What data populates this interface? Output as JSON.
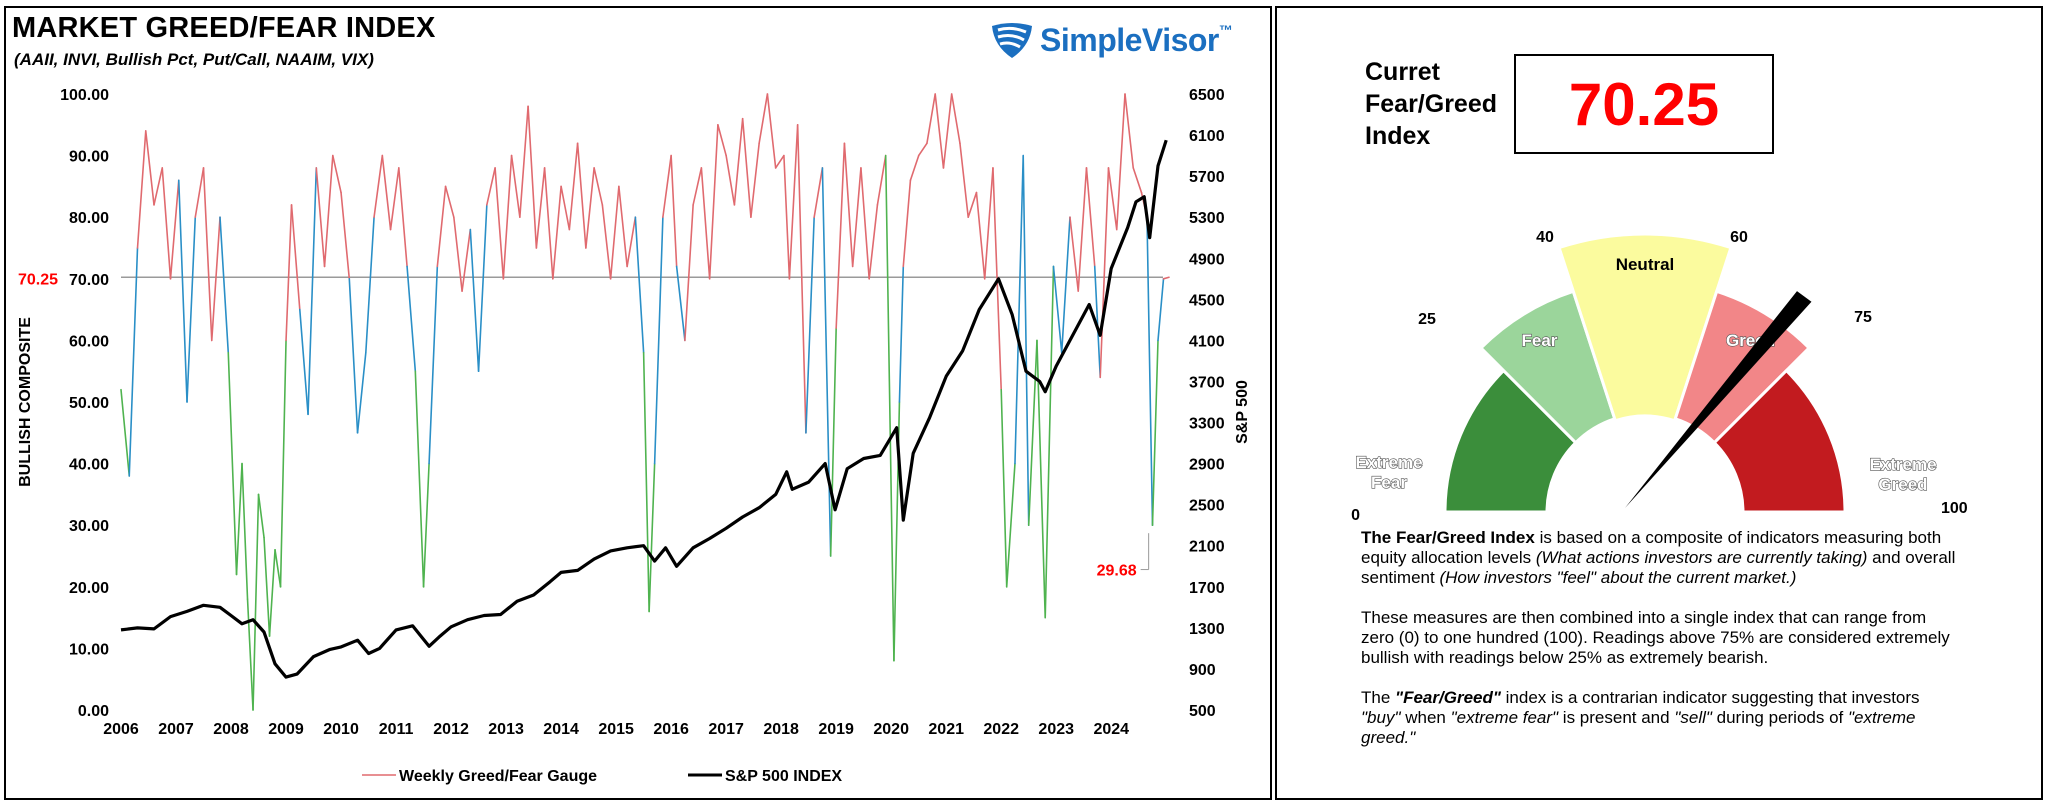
{
  "header": {
    "title": "MARKET GREED/FEAR INDEX",
    "subtitle": "(AAII, INVI, Bullish Pct, Put/Call, NAAIM, VIX)",
    "logo_text": "SimpleVisor",
    "logo_tm": "™"
  },
  "colors": {
    "greed_line": "#e06a6f",
    "neutral_line": "#2a8fc7",
    "fear_line": "#4fb34f",
    "sp500_line": "#000000",
    "current_value_red": "#ff0000"
  },
  "chart_data": {
    "type": "line",
    "x_ticks": [
      "2006",
      "2007",
      "2008",
      "2009",
      "2010",
      "2011",
      "2012",
      "2013",
      "2014",
      "2015",
      "2016",
      "2017",
      "2018",
      "2019",
      "2020",
      "2021",
      "2022",
      "2023",
      "2024"
    ],
    "xlim": [
      2006.0,
      2025.05
    ],
    "y_left": {
      "label": "BULLISH COMPOSITE",
      "ticks": [
        "0.00",
        "10.00",
        "20.00",
        "30.00",
        "40.00",
        "50.00",
        "60.00",
        "70.00",
        "80.00",
        "90.00",
        "100.00"
      ],
      "range": [
        0,
        100
      ]
    },
    "y_right": {
      "label": "S&P 500",
      "ticks": [
        "500",
        "900",
        "1300",
        "1700",
        "2100",
        "2500",
        "2900",
        "3300",
        "3700",
        "4100",
        "4500",
        "4900",
        "5300",
        "5700",
        "6100",
        "6500"
      ],
      "range": [
        500,
        6500
      ]
    },
    "reference_line": {
      "value": 70.25,
      "label": "70.25"
    },
    "min_annotation": {
      "value": 29.68,
      "label": "29.68"
    },
    "legend": [
      "Weekly Greed/Fear Gauge",
      "S&P 500 INDEX"
    ],
    "legend_position": "bottom",
    "series": [
      {
        "name": "Weekly Greed/Fear Gauge",
        "x": [
          2006.0,
          2006.15,
          2006.3,
          2006.45,
          2006.6,
          2006.75,
          2006.9,
          2007.05,
          2007.2,
          2007.35,
          2007.5,
          2007.65,
          2007.8,
          2007.95,
          2008.1,
          2008.2,
          2008.3,
          2008.4,
          2008.5,
          2008.6,
          2008.7,
          2008.8,
          2008.9,
          2009.0,
          2009.1,
          2009.25,
          2009.4,
          2009.55,
          2009.7,
          2009.85,
          2010.0,
          2010.15,
          2010.3,
          2010.45,
          2010.6,
          2010.75,
          2010.9,
          2011.05,
          2011.2,
          2011.35,
          2011.5,
          2011.6,
          2011.75,
          2011.9,
          2012.05,
          2012.2,
          2012.35,
          2012.5,
          2012.65,
          2012.8,
          2012.95,
          2013.1,
          2013.25,
          2013.4,
          2013.55,
          2013.7,
          2013.85,
          2014.0,
          2014.15,
          2014.3,
          2014.45,
          2014.6,
          2014.75,
          2014.9,
          2015.05,
          2015.2,
          2015.35,
          2015.5,
          2015.6,
          2015.7,
          2015.85,
          2016.0,
          2016.1,
          2016.25,
          2016.4,
          2016.55,
          2016.7,
          2016.85,
          2017.0,
          2017.15,
          2017.3,
          2017.45,
          2017.6,
          2017.75,
          2017.9,
          2018.05,
          2018.15,
          2018.3,
          2018.45,
          2018.6,
          2018.75,
          2018.9,
          2019.0,
          2019.15,
          2019.3,
          2019.45,
          2019.6,
          2019.75,
          2019.9,
          2020.05,
          2020.15,
          2020.22,
          2020.35,
          2020.5,
          2020.65,
          2020.8,
          2020.95,
          2021.1,
          2021.25,
          2021.4,
          2021.55,
          2021.7,
          2021.85,
          2022.0,
          2022.1,
          2022.25,
          2022.4,
          2022.5,
          2022.65,
          2022.8,
          2022.95,
          2023.1,
          2023.25,
          2023.4,
          2023.55,
          2023.7,
          2023.8,
          2023.95,
          2024.1,
          2024.25,
          2024.4,
          2024.55,
          2024.65,
          2024.75,
          2024.85,
          2024.95,
          2025.05
        ],
        "values": [
          52,
          38,
          75,
          94,
          82,
          88,
          70,
          86,
          50,
          80,
          88,
          60,
          80,
          58,
          22,
          40,
          18,
          0,
          35,
          28,
          12,
          26,
          20,
          60,
          82,
          65,
          48,
          88,
          72,
          90,
          84,
          70,
          45,
          58,
          80,
          90,
          78,
          88,
          72,
          55,
          20,
          40,
          72,
          85,
          80,
          68,
          78,
          55,
          82,
          88,
          70,
          90,
          80,
          98,
          75,
          88,
          70,
          85,
          78,
          92,
          75,
          88,
          82,
          70,
          85,
          72,
          80,
          58,
          16,
          40,
          80,
          90,
          72,
          60,
          82,
          88,
          70,
          95,
          90,
          82,
          96,
          80,
          92,
          100,
          88,
          90,
          70,
          95,
          45,
          80,
          88,
          25,
          62,
          92,
          72,
          88,
          70,
          82,
          90,
          8,
          50,
          72,
          86,
          90,
          92,
          100,
          88,
          100,
          92,
          80,
          84,
          70,
          88,
          52,
          20,
          40,
          90,
          30,
          60,
          15,
          72,
          58,
          80,
          68,
          88,
          72,
          54,
          88,
          78,
          100,
          88,
          84,
          80,
          30,
          60,
          70,
          70.25
        ]
      },
      {
        "name": "S&P 500 INDEX",
        "x": [
          2006.0,
          2006.3,
          2006.6,
          2006.9,
          2007.2,
          2007.5,
          2007.8,
          2008.0,
          2008.2,
          2008.4,
          2008.6,
          2008.8,
          2009.0,
          2009.2,
          2009.5,
          2009.8,
          2010.0,
          2010.3,
          2010.5,
          2010.7,
          2011.0,
          2011.3,
          2011.6,
          2011.8,
          2012.0,
          2012.3,
          2012.6,
          2012.9,
          2013.2,
          2013.5,
          2013.8,
          2014.0,
          2014.3,
          2014.6,
          2014.9,
          2015.2,
          2015.5,
          2015.7,
          2015.9,
          2016.1,
          2016.4,
          2016.7,
          2017.0,
          2017.3,
          2017.6,
          2017.9,
          2018.1,
          2018.2,
          2018.5,
          2018.8,
          2018.98,
          2019.2,
          2019.5,
          2019.8,
          2020.1,
          2020.22,
          2020.4,
          2020.7,
          2021.0,
          2021.3,
          2021.6,
          2021.95,
          2022.2,
          2022.45,
          2022.7,
          2022.8,
          2023.0,
          2023.3,
          2023.6,
          2023.8,
          2024.0,
          2024.3,
          2024.45,
          2024.6,
          2024.7,
          2024.85,
          2025.0
        ],
        "values": [
          1280,
          1300,
          1290,
          1410,
          1460,
          1520,
          1500,
          1420,
          1340,
          1380,
          1260,
          950,
          820,
          850,
          1020,
          1090,
          1115,
          1180,
          1050,
          1100,
          1280,
          1320,
          1120,
          1220,
          1310,
          1380,
          1420,
          1430,
          1560,
          1620,
          1750,
          1840,
          1860,
          1970,
          2050,
          2080,
          2100,
          1950,
          2080,
          1900,
          2080,
          2170,
          2270,
          2380,
          2470,
          2600,
          2820,
          2650,
          2720,
          2900,
          2450,
          2850,
          2950,
          2980,
          3250,
          2350,
          3000,
          3350,
          3750,
          4000,
          4400,
          4700,
          4350,
          3800,
          3700,
          3600,
          3850,
          4150,
          4450,
          4150,
          4800,
          5200,
          5450,
          5500,
          5100,
          5800,
          6050
        ]
      }
    ]
  },
  "gauge": {
    "title": "Curret Fear/Greed Index",
    "current_value": "70.25",
    "needle_value": 70.25,
    "segments": [
      {
        "from": 0,
        "to": 25,
        "label": "Extreme Fear",
        "color": "#3b8e3b",
        "text_color": "#ffffff"
      },
      {
        "from": 25,
        "to": 40,
        "label": "Fear",
        "color": "#9bd59b",
        "text_color": "#ffffff"
      },
      {
        "from": 40,
        "to": 60,
        "label": "Neutral",
        "color": "#fbfb9e",
        "text_color": "#000000"
      },
      {
        "from": 60,
        "to": 75,
        "label": "Greed",
        "color": "#f28688",
        "text_color": "#ffffff"
      },
      {
        "from": 75,
        "to": 100,
        "label": "Extreme Greed",
        "color": "#c21b1f",
        "text_color": "#ffffff"
      }
    ],
    "ticks": [
      "0",
      "25",
      "40",
      "60",
      "75",
      "100"
    ]
  },
  "description": {
    "p1_bold": "The Fear/Greed Index",
    "p1_a": " is based on a composite of indicators measuring both equity allocation levels ",
    "p1_italic1": "(What actions investors are currently taking)",
    "p1_b": " and overall sentiment ",
    "p1_italic2": "(How investors \"feel\" about the current market.)",
    "p2": "These measures are then combined into a single index that can range from zero (0) to one hundred (100). Readings above 75% are considered extremely bullish with readings below 25% as extremely bearish.",
    "p3_a": "The ",
    "p3_bold": "\"Fear/Greed\"",
    "p3_b": " index is a contrarian indicator suggesting that investors ",
    "p3_i1": "\"buy\"",
    "p3_c": " when ",
    "p3_i2": "\"extreme fear\"",
    "p3_d": " is present and ",
    "p3_i3": "\"sell\"",
    "p3_e": " during periods of ",
    "p3_i4": "\"extreme greed.\""
  }
}
